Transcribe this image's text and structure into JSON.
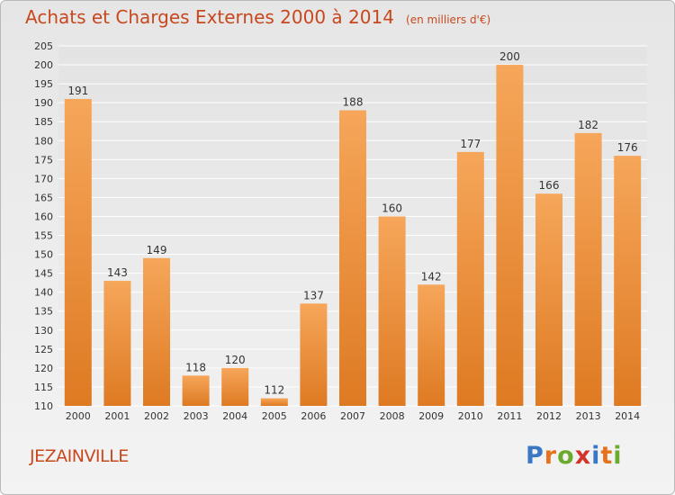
{
  "title": "Achats et Charges Externes 2000 à 2014",
  "unit": "(en milliers d'€)",
  "commune": "JEZAINVILLE",
  "logo": {
    "text": "Proxiti",
    "letters": [
      {
        "ch": "P",
        "color": "#3b78c4"
      },
      {
        "ch": "r",
        "color": "#e4731e"
      },
      {
        "ch": "o",
        "color": "#6aaa2c"
      },
      {
        "ch": "x",
        "color": "#d2342b"
      },
      {
        "ch": "i",
        "color": "#3b78c4"
      },
      {
        "ch": "t",
        "color": "#e4731e"
      },
      {
        "ch": "i",
        "color": "#6aaa2c"
      }
    ]
  },
  "colors": {
    "accent": "#c8481e",
    "bar_light": "#f6a65a",
    "bar_dark": "#de7a22"
  },
  "chart_data": {
    "type": "bar",
    "title": "Achats et Charges Externes 2000 à 2014",
    "categories": [
      "2000",
      "2001",
      "2002",
      "2003",
      "2004",
      "2005",
      "2006",
      "2007",
      "2008",
      "2009",
      "2010",
      "2011",
      "2012",
      "2013",
      "2014"
    ],
    "values": [
      191,
      143,
      149,
      118,
      120,
      112,
      137,
      188,
      160,
      142,
      177,
      200,
      166,
      182,
      176
    ],
    "ylim": [
      110,
      205
    ],
    "ytick_step": 5,
    "grid": true,
    "xlabel": "",
    "ylabel": ""
  }
}
